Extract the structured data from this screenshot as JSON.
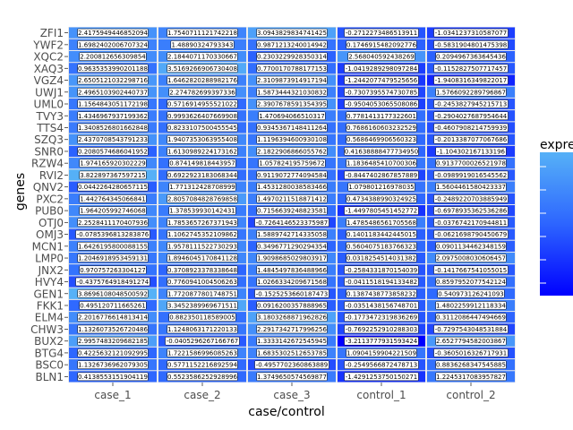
{
  "chart_data": {
    "type": "heatmap",
    "xlabel": "case/control",
    "ylabel": "genes",
    "legend_title": "expre",
    "columns": [
      "case_1",
      "case_2",
      "case_3",
      "control_1",
      "control_2"
    ],
    "rows": [
      "ZFI1",
      "YWF2",
      "XQC2",
      "XAQ3",
      "VGZ4",
      "UWJ1",
      "UML0",
      "TVY3",
      "TTS4",
      "SZQ3",
      "SNR0",
      "RZW4",
      "RVI2",
      "QNV2",
      "PXC2",
      "PUB0",
      "OTJ0",
      "OMJ3",
      "MCN1",
      "LMP0",
      "JNX2",
      "HVY4",
      "GEN1",
      "FKK1",
      "ELM4",
      "CHW3",
      "BUX2",
      "BTG4",
      "BSC0",
      "BLN1"
    ],
    "labels": [
      [
        "2.4175949446852094",
        "1.7540711121742218",
        "3.0943829834741425",
        "-0.2712273486513911",
        "-1.0341237310587077"
      ],
      [
        "1.6982402006707324",
        "1.48890324793343",
        "0.9871213240014942",
        "0.1746915482092776",
        "-0.5831904801475398"
      ],
      [
        "2.200812656309854",
        "2.1844071170330667",
        "0.2303229928350314",
        "2.568040592438269",
        "0.2094967363645436"
      ],
      [
        "0.9635353990201188",
        "3.5169266906730408",
        "0.7700170788177153",
        "-1.0419289298097284",
        "-0.1152827507717457"
      ],
      [
        "2.6505121032298716",
        "1.6462820288982176",
        "2.3109873914917194",
        "-1.2442077479525656",
        "-1.9408316349822017"
      ],
      [
        "2.4965103902440737",
        "2.274782699397336",
        "1.5873444321030832",
        "-0.7307395574730785",
        "1.5766092289796867"
      ],
      [
        "1.1564843051172198",
        "0.5716914955521022",
        "2.3907678591354395",
        "-0.9504053065508086",
        "-0.2453827945215713"
      ],
      [
        "1.4346967937199362",
        "0.9993626407669908",
        "1.470694066510317",
        "0.7781413177322601",
        "-0.2904027687954644"
      ],
      [
        "1.3408526801662848",
        "0.8233107500455545",
        "0.9345367148411264",
        "0.7686160603232529",
        "-0.4607908214759939"
      ],
      [
        "2.4370708543791233",
        "1.9407353063955408",
        "1.1196394600930108",
        "0.5686469906560323",
        "-0.2013387077067686"
      ],
      [
        "0.2080574686041952",
        "1.6130989224173162",
        "2.1822906866055762",
        "0.41638888477734950",
        "-1.104302167133196"
      ],
      [
        "1.974165920302229",
        "0.874149818443957",
        "1.057824195759672",
        "1.1836485410700306",
        "0.9137700026521978"
      ],
      [
        "3.822897367597215",
        "0.6922923183068344",
        "0.9119072774094584",
        "-0.8447402867857889",
        "-0.0989919016545562"
      ],
      [
        "0.0442264280657115",
        "1.771312428708999",
        "1.4531280038583466",
        "1.079801216978035",
        "1.5604461580423337"
      ],
      [
        "1.442764345066841",
        "2.8057084828769858",
        "1.4970211518871412",
        "0.4734388990324925",
        "-0.2489220703885949"
      ],
      [
        "1.964205992746068",
        "1.378539930142431",
        "0.7156639248823581",
        "-1.4497805451452772",
        "-0.6978935362536286"
      ],
      [
        "2.2528411170407936",
        "1.7853657267371943",
        "-0.7264146523375987",
        "1.4785486561705568",
        "-0.0376742170944811"
      ],
      [
        "-0.0785396813283876",
        "1.1062745352109862",
        "1.5889742714335058",
        "0.1401183442445015",
        "-0.0621698790450679"
      ],
      [
        "1.6426195800088155",
        "1.9578111522730293",
        "0.3496771290294354",
        "0.5604075183766323",
        "0.0901134462348159"
      ],
      [
        "1.2046918953459131",
        "1.8946045170841128",
        "1.9098685029803917",
        "0.0318254514031382",
        "2.0975008030606457"
      ],
      [
        "0.970757263304127",
        "0.3708923378338648",
        "1.4845497836488966",
        "-0.2584331870154039",
        "-0.1417667541055015"
      ],
      [
        "-0.4375764918491274",
        "0.7760941004506263",
        "1.0266334209671568",
        "-0.0411518194133482",
        "0.8597952077542124"
      ],
      [
        "3.8696108048500592",
        "1.7720877801748751",
        "-0.1525253660187473",
        "0.1387438773858232",
        "0.540973126241093"
      ],
      [
        "0.495120711665261",
        "3.3452389969671511",
        "0.0916200357888965",
        "-0.0351438156748701",
        "1.4802259912118334"
      ],
      [
        "2.2016776614813414",
        "0.882350118589005",
        "3.1803268871962826",
        "-0.1773472319836269",
        "0.3112086447494669"
      ],
      [
        "1.1326073526720486",
        "1.1248063171220133",
        "2.2917342717996256",
        "-0.7692252910288303",
        "-0.7297543048531884"
      ],
      [
        "2.9957483209682185",
        "-0.0405296267166767",
        "1.3333142672545945",
        "-3.2113777931593424",
        "2.6527794582003867"
      ],
      [
        "0.4225632121092995",
        "1.7221586996085263",
        "1.6835302512653785",
        "1.0904159904221509",
        "-0.3605016326717931"
      ],
      [
        "1.1326736962079305",
        "0.5771152216892594",
        "-0.4957702360863889",
        "-0.2549566872478713",
        "0.8836268347545885"
      ],
      [
        "0.4138553151904119",
        "0.5523586252928996",
        "1.3749650574569877",
        "-1.4291253750150271",
        "1.2245317083957827"
      ]
    ]
  }
}
